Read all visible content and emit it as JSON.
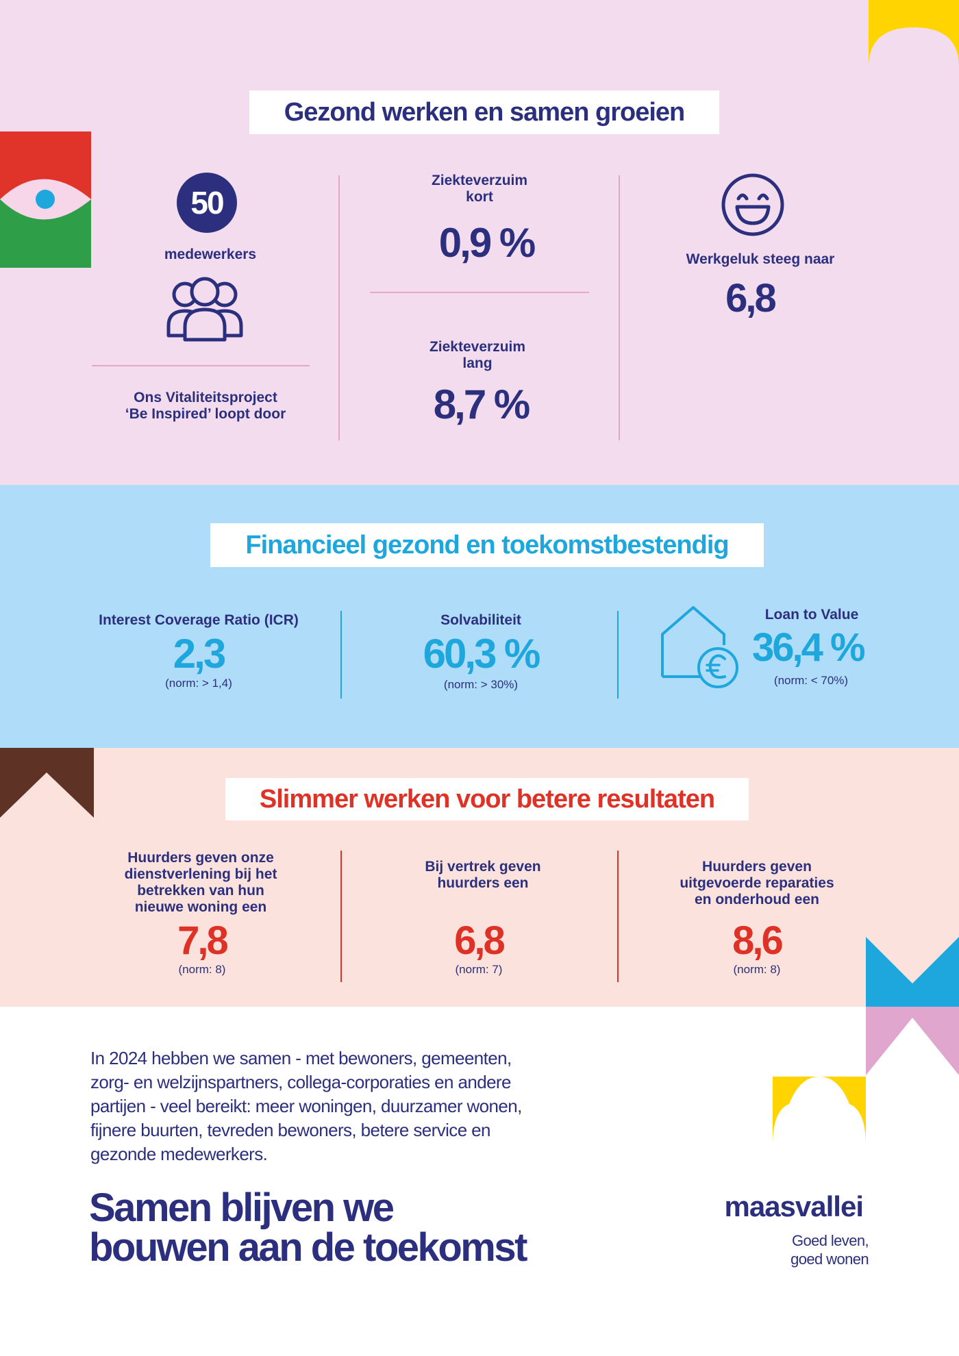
{
  "colors": {
    "navy": "#2b2f7e",
    "sky": "#1ea7dd",
    "red": "#de3226",
    "pink_bg": "#f2dcee",
    "blue_bg": "#aedcf9",
    "peach_bg": "#fbe2dc",
    "yellow": "#ffd400",
    "brown": "#5e3325",
    "green": "#2e9e49",
    "pink_shape": "#e1a6cd"
  },
  "section1": {
    "title": "Gezond werken en samen groeien",
    "employees": {
      "count": "50",
      "label": "medewerkers",
      "icon": "people-group-icon"
    },
    "vitality": "Ons Vitaliteitsproject\n‘Be Inspired’ loopt door",
    "absence_short": {
      "label": "Ziekteverzuim\nkort",
      "value": "0,9 %"
    },
    "absence_long": {
      "label": "Ziekteverzuim\nlang",
      "value": "8,7 %"
    },
    "happiness": {
      "label": "Werkgeluk steeg naar",
      "value": "6,8",
      "icon": "smiley-icon"
    }
  },
  "section2": {
    "title": "Financieel gezond en toekomstbestendig",
    "icr": {
      "label": "Interest Coverage Ratio (ICR)",
      "value": "2,3",
      "norm": "(norm: > 1,4)"
    },
    "solvency": {
      "label": "Solvabiliteit",
      "value": "60,3 %",
      "norm": "(norm: > 30%)"
    },
    "ltv": {
      "label": "Loan to Value",
      "value": "36,4 %",
      "norm": "(norm: < 70%)",
      "icon": "house-euro-icon"
    }
  },
  "section3": {
    "title": "Slimmer werken voor betere resultaten",
    "new_home": {
      "label": "Huurders geven onze\ndienstverlening bij het\nbetrekken van hun\nnieuwe woning een",
      "value": "7,8",
      "norm": "(norm: 8)"
    },
    "departure": {
      "label": "Bij vertrek geven\nhuurders een",
      "value": "6,8",
      "norm": "(norm: 7)"
    },
    "repairs": {
      "label": "Huurders geven\nuitgevoerde reparaties\nen onderhoud een",
      "value": "8,6",
      "norm": "(norm: 8)"
    }
  },
  "footer": {
    "body": "In 2024 hebben we samen - met bewoners, gemeenten,\nzorg- en welzijnspartners, collega-corporaties en andere\npartijen - veel bereikt: meer woningen, duurzamer wonen,\nfijnere buurten, tevreden bewoners, betere service en\ngezonde medewerkers.",
    "tagline": "Samen blijven we\nbouwen aan de toekomst",
    "brand": "maasvallei",
    "slogan": "Goed leven,\ngoed wonen"
  }
}
